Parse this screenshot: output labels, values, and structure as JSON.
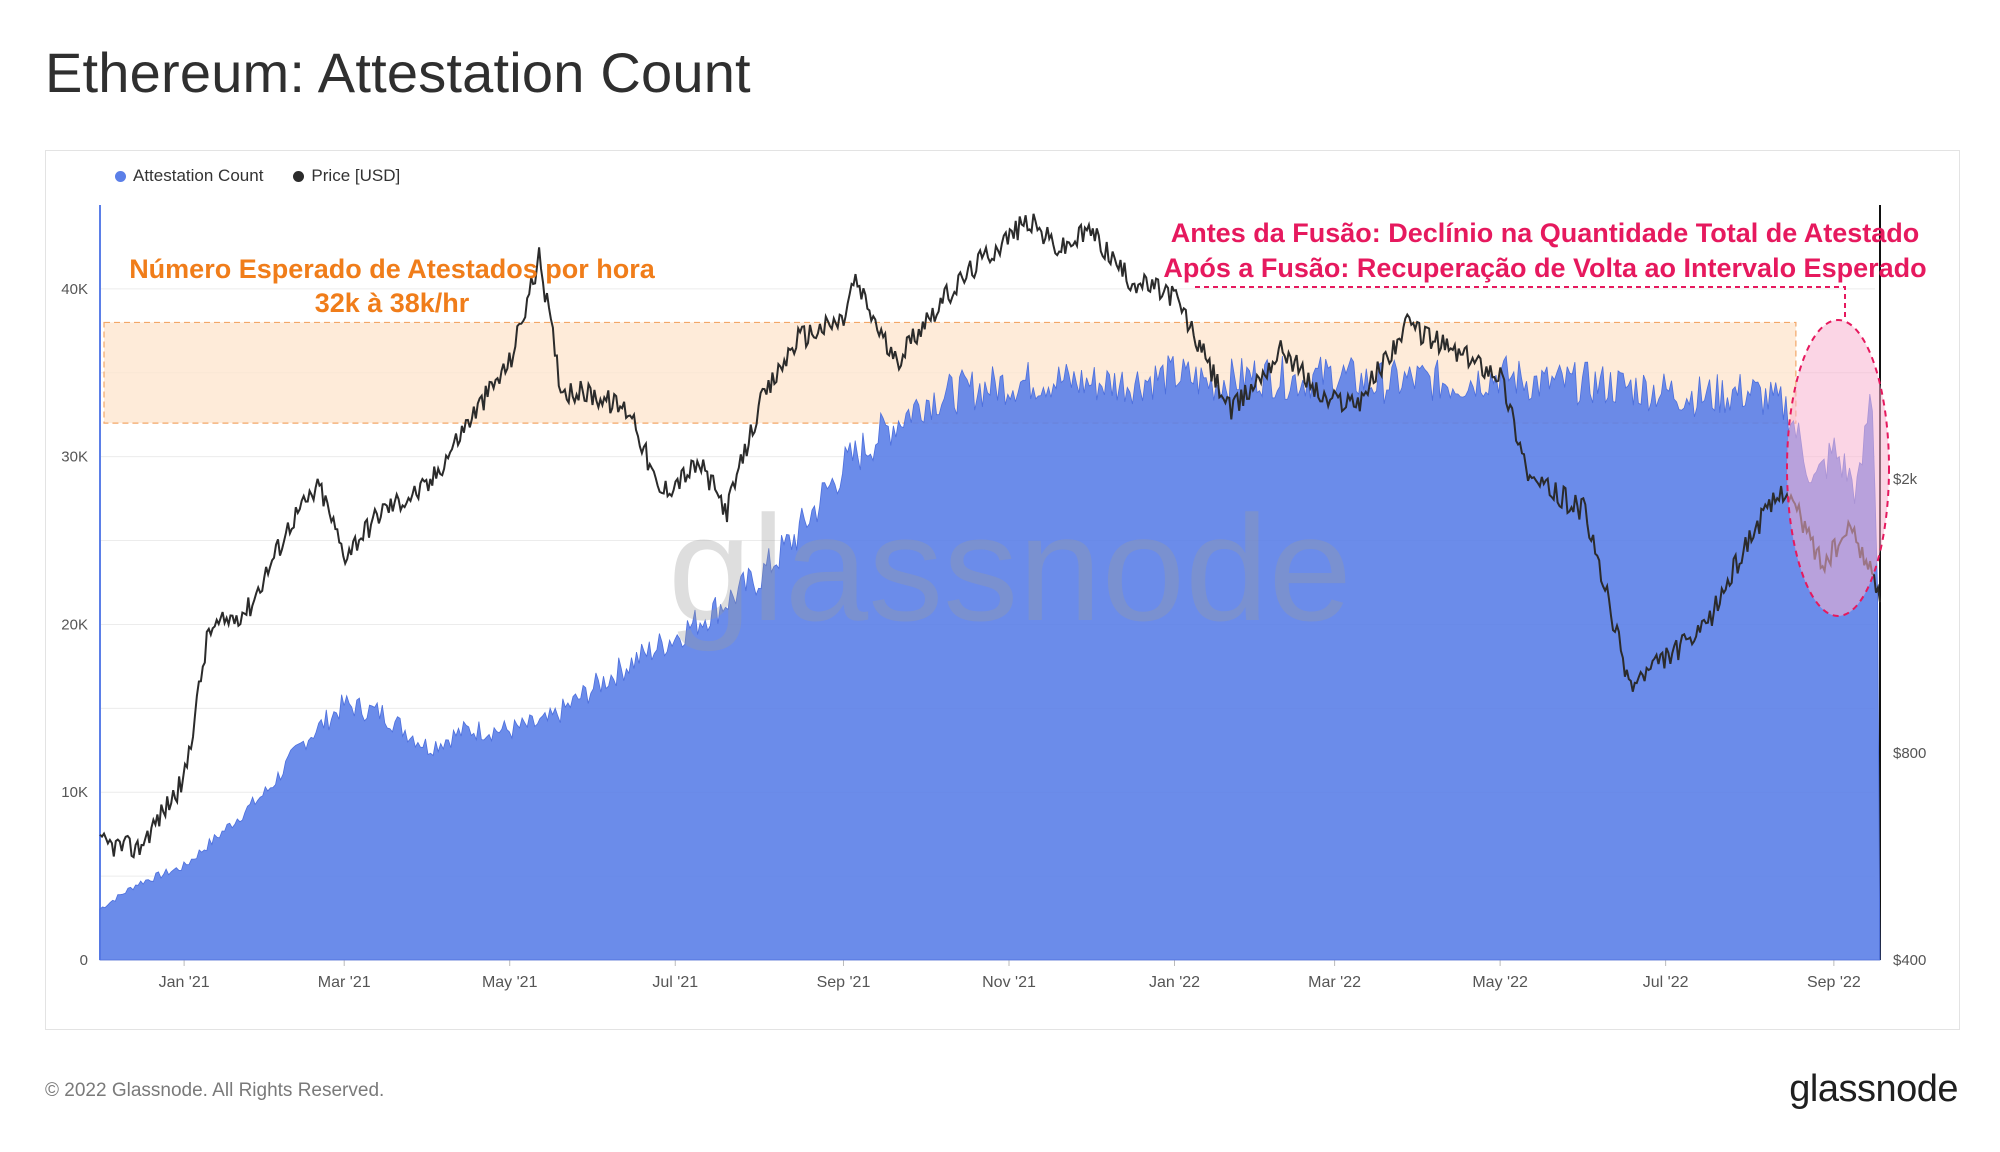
{
  "header": {
    "title": "Ethereum: Attestation Count"
  },
  "legend": [
    {
      "label": "Attestation Count",
      "color": "#5b7fe8"
    },
    {
      "label": "Price [USD]",
      "color": "#2b2b2b"
    }
  ],
  "watermark": "glassnode",
  "annotations": {
    "expected_line1": "Número Esperado de Atestados por hora",
    "expected_line2": "32k à 38k/hr",
    "merge_line1": "Antes da Fusão: Declínio na Quantidade Total de Atestado",
    "merge_line2": "Após a Fusão: Recuperação de Volta ao Intervalo Esperado",
    "expected_color": "#f07d1a",
    "merge_color": "#e6195e"
  },
  "footer": {
    "copyright": "© 2022 Glassnode. All Rights Reserved.",
    "logo": "glassnode"
  },
  "chart_data": {
    "type": "area",
    "title": "Ethereum: Attestation Count",
    "x_tick_labels": [
      "Jan '21",
      "Mar '21",
      "May '21",
      "Jul '21",
      "Sep '21",
      "Nov '21",
      "Jan '22",
      "Mar '22",
      "May '22",
      "Jul '22",
      "Sep '22"
    ],
    "x_range": [
      "2020-12-01",
      "2022-09-18"
    ],
    "left_axis": {
      "ticks": [
        "0",
        "10K",
        "20K",
        "30K",
        "40K"
      ],
      "ylim": [
        0,
        45000
      ]
    },
    "right_axis": {
      "ticks": [
        "$400",
        "$800",
        "$2k"
      ],
      "scale": "log",
      "ylim": [
        400,
        5000
      ]
    },
    "expected_band": [
      32000,
      38000
    ],
    "grid": true,
    "legend_position": "top-left",
    "series": [
      {
        "name": "Attestation Count",
        "axis": "left",
        "color": "#5b7fe8",
        "points": [
          [
            "2020-12-01",
            3000
          ],
          [
            "2020-12-15",
            4500
          ],
          [
            "2021-01-01",
            5500
          ],
          [
            "2021-01-15",
            7500
          ],
          [
            "2021-02-01",
            10000
          ],
          [
            "2021-02-15",
            13000
          ],
          [
            "2021-03-01",
            15000
          ],
          [
            "2021-03-15",
            14500
          ],
          [
            "2021-04-01",
            12500
          ],
          [
            "2021-04-15",
            13500
          ],
          [
            "2021-05-01",
            13500
          ],
          [
            "2021-05-15",
            14000
          ],
          [
            "2021-06-01",
            16000
          ],
          [
            "2021-06-15",
            17500
          ],
          [
            "2021-07-01",
            19000
          ],
          [
            "2021-07-15",
            20500
          ],
          [
            "2021-08-01",
            22500
          ],
          [
            "2021-08-15",
            25000
          ],
          [
            "2021-09-01",
            29000
          ],
          [
            "2021-09-15",
            31000
          ],
          [
            "2021-10-01",
            33000
          ],
          [
            "2021-10-15",
            33500
          ],
          [
            "2021-11-01",
            34000
          ],
          [
            "2021-11-15",
            34200
          ],
          [
            "2021-12-01",
            34000
          ],
          [
            "2021-12-15",
            34000
          ],
          [
            "2022-01-01",
            34500
          ],
          [
            "2022-01-15",
            34000
          ],
          [
            "2022-02-01",
            34500
          ],
          [
            "2022-02-15",
            34200
          ],
          [
            "2022-03-01",
            34500
          ],
          [
            "2022-03-15",
            34000
          ],
          [
            "2022-04-01",
            34200
          ],
          [
            "2022-04-15",
            34000
          ],
          [
            "2022-05-01",
            34500
          ],
          [
            "2022-05-15",
            34000
          ],
          [
            "2022-06-01",
            34000
          ],
          [
            "2022-06-15",
            33800
          ],
          [
            "2022-07-01",
            33500
          ],
          [
            "2022-07-15",
            33200
          ],
          [
            "2022-08-01",
            33500
          ],
          [
            "2022-08-15",
            32500
          ],
          [
            "2022-08-25",
            28000
          ],
          [
            "2022-09-01",
            30000
          ],
          [
            "2022-09-10",
            27500
          ],
          [
            "2022-09-15",
            34000
          ],
          [
            "2022-09-18",
            17500
          ]
        ]
      },
      {
        "name": "Price [USD]",
        "axis": "right",
        "color": "#2b2b2b",
        "points": [
          [
            "2020-12-01",
            590
          ],
          [
            "2020-12-15",
            580
          ],
          [
            "2021-01-01",
            730
          ],
          [
            "2021-01-10",
            1200
          ],
          [
            "2021-01-25",
            1300
          ],
          [
            "2021-02-10",
            1750
          ],
          [
            "2021-02-20",
            1950
          ],
          [
            "2021-03-01",
            1550
          ],
          [
            "2021-03-15",
            1800
          ],
          [
            "2021-04-01",
            1950
          ],
          [
            "2021-04-15",
            2400
          ],
          [
            "2021-05-01",
            2950
          ],
          [
            "2021-05-12",
            4200
          ],
          [
            "2021-05-20",
            2700
          ],
          [
            "2021-06-01",
            2650
          ],
          [
            "2021-06-15",
            2500
          ],
          [
            "2021-06-25",
            1900
          ],
          [
            "2021-07-10",
            2100
          ],
          [
            "2021-07-20",
            1800
          ],
          [
            "2021-08-01",
            2550
          ],
          [
            "2021-08-15",
            3200
          ],
          [
            "2021-09-01",
            3400
          ],
          [
            "2021-09-05",
            3900
          ],
          [
            "2021-09-20",
            2950
          ],
          [
            "2021-10-01",
            3400
          ],
          [
            "2021-10-20",
            4100
          ],
          [
            "2021-11-08",
            4750
          ],
          [
            "2021-11-20",
            4300
          ],
          [
            "2021-12-01",
            4600
          ],
          [
            "2021-12-15",
            3900
          ],
          [
            "2022-01-01",
            3700
          ],
          [
            "2022-01-22",
            2500
          ],
          [
            "2022-02-10",
            3100
          ],
          [
            "2022-02-25",
            2600
          ],
          [
            "2022-03-10",
            2600
          ],
          [
            "2022-03-28",
            3350
          ],
          [
            "2022-04-15",
            3050
          ],
          [
            "2022-05-01",
            2850
          ],
          [
            "2022-05-12",
            2000
          ],
          [
            "2022-06-01",
            1800
          ],
          [
            "2022-06-18",
            1000
          ],
          [
            "2022-07-01",
            1100
          ],
          [
            "2022-07-15",
            1200
          ],
          [
            "2022-08-01",
            1650
          ],
          [
            "2022-08-14",
            1950
          ],
          [
            "2022-08-28",
            1500
          ],
          [
            "2022-09-08",
            1700
          ],
          [
            "2022-09-18",
            1350
          ]
        ]
      }
    ]
  }
}
